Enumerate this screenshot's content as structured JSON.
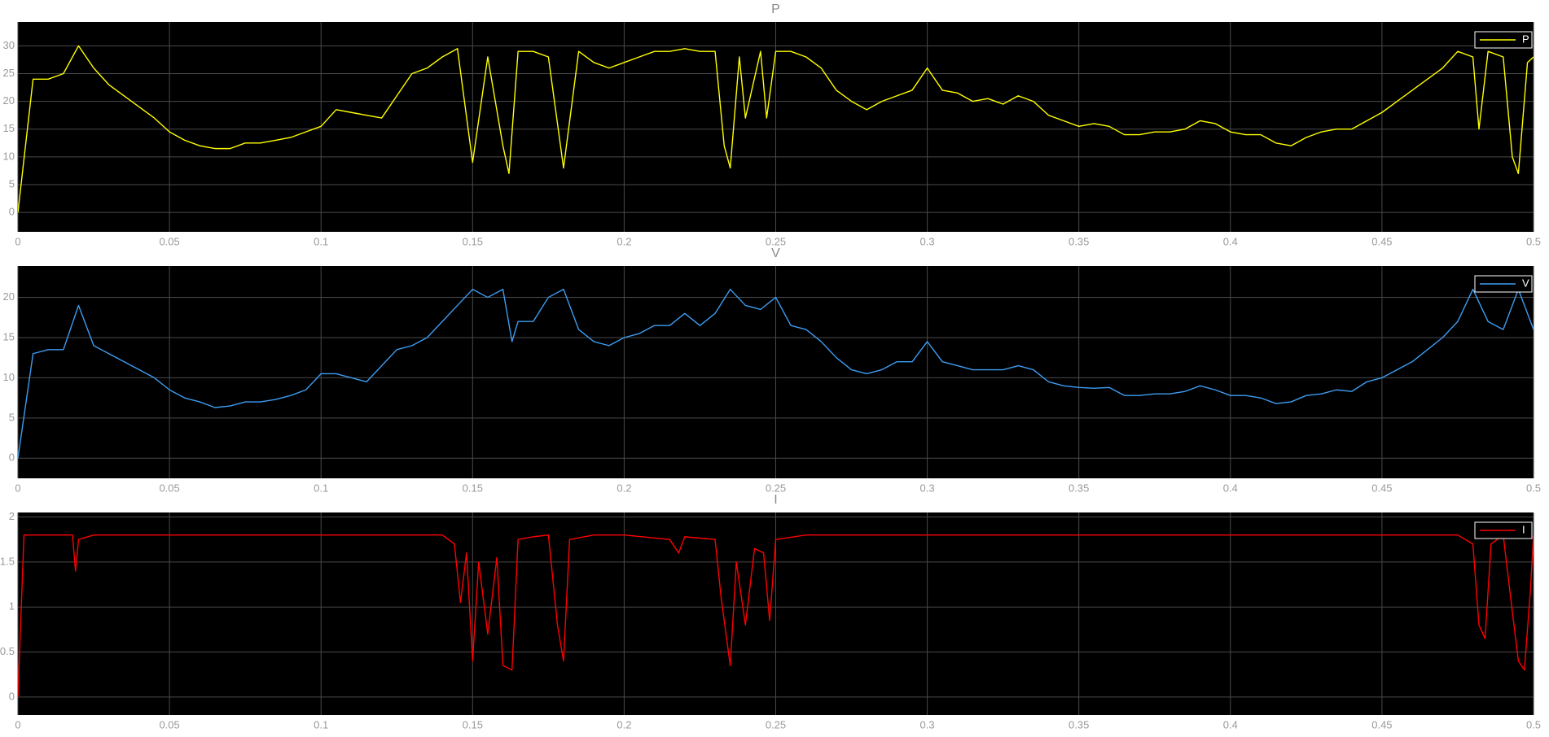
{
  "chart_data": [
    {
      "type": "line",
      "title": "P",
      "xlim": [
        0,
        0.5
      ],
      "xticks": [
        0,
        0.05,
        0.1,
        0.15,
        0.2,
        0.25,
        0.3,
        0.35,
        0.4,
        0.45,
        0.5
      ],
      "ylim": [
        -3.5,
        34.3
      ],
      "yticks": [
        0,
        5,
        10,
        15,
        20,
        25,
        30
      ],
      "grid": true,
      "legend": "upper right",
      "x": [
        0,
        0.005,
        0.01,
        0.015,
        0.02,
        0.025,
        0.03,
        0.035,
        0.04,
        0.045,
        0.05,
        0.055,
        0.06,
        0.065,
        0.07,
        0.075,
        0.08,
        0.085,
        0.09,
        0.095,
        0.1,
        0.105,
        0.11,
        0.115,
        0.12,
        0.125,
        0.13,
        0.135,
        0.14,
        0.145,
        0.15,
        0.155,
        0.16,
        0.162,
        0.165,
        0.17,
        0.175,
        0.18,
        0.185,
        0.19,
        0.195,
        0.2,
        0.205,
        0.21,
        0.215,
        0.22,
        0.225,
        0.23,
        0.233,
        0.235,
        0.238,
        0.24,
        0.245,
        0.247,
        0.25,
        0.255,
        0.26,
        0.265,
        0.27,
        0.275,
        0.28,
        0.285,
        0.29,
        0.295,
        0.3,
        0.305,
        0.31,
        0.315,
        0.32,
        0.325,
        0.33,
        0.335,
        0.34,
        0.345,
        0.35,
        0.355,
        0.36,
        0.365,
        0.37,
        0.375,
        0.38,
        0.385,
        0.39,
        0.395,
        0.4,
        0.405,
        0.41,
        0.415,
        0.42,
        0.425,
        0.43,
        0.435,
        0.44,
        0.445,
        0.45,
        0.455,
        0.46,
        0.465,
        0.47,
        0.475,
        0.48,
        0.482,
        0.485,
        0.49,
        0.493,
        0.495,
        0.498,
        0.5
      ],
      "series": [
        {
          "name": "P",
          "color": "#ffff00",
          "values": [
            0,
            24,
            24,
            25,
            30,
            26,
            23,
            21,
            19,
            17,
            14.5,
            13,
            12,
            11.5,
            11.5,
            12.5,
            12.5,
            13,
            13.5,
            14.5,
            15.5,
            18.5,
            18,
            17.5,
            17,
            21,
            25,
            26,
            28,
            29.5,
            9,
            28,
            12,
            7,
            29,
            29,
            28,
            8,
            29,
            27,
            26,
            27,
            28,
            29,
            29,
            29.5,
            29,
            29,
            12,
            8,
            28,
            17,
            29,
            17,
            29,
            29,
            28,
            26,
            22,
            20,
            18.5,
            20,
            21,
            22,
            26,
            22,
            21.5,
            20,
            20.5,
            19.5,
            21,
            20,
            17.5,
            16.5,
            15.5,
            16,
            15.5,
            14,
            14,
            14.5,
            14.5,
            15,
            16.5,
            16,
            14.5,
            14,
            14,
            12.5,
            12,
            13.5,
            14.5,
            15,
            15,
            16.5,
            18,
            20,
            22,
            24,
            26,
            29,
            28,
            15,
            29,
            28,
            10,
            7,
            27,
            28
          ]
        }
      ]
    },
    {
      "type": "line",
      "title": "V",
      "xlim": [
        0,
        0.5
      ],
      "xticks": [
        0,
        0.05,
        0.1,
        0.15,
        0.2,
        0.25,
        0.3,
        0.35,
        0.4,
        0.45,
        0.5
      ],
      "ylim": [
        -2.5,
        23.9
      ],
      "yticks": [
        0,
        5,
        10,
        15,
        20
      ],
      "grid": true,
      "legend": "upper right",
      "x": [
        0,
        0.005,
        0.01,
        0.015,
        0.02,
        0.025,
        0.03,
        0.035,
        0.04,
        0.045,
        0.05,
        0.055,
        0.06,
        0.065,
        0.07,
        0.075,
        0.08,
        0.085,
        0.09,
        0.095,
        0.1,
        0.105,
        0.11,
        0.115,
        0.12,
        0.125,
        0.13,
        0.135,
        0.14,
        0.145,
        0.15,
        0.155,
        0.16,
        0.163,
        0.165,
        0.17,
        0.175,
        0.18,
        0.185,
        0.19,
        0.195,
        0.2,
        0.205,
        0.21,
        0.215,
        0.22,
        0.225,
        0.23,
        0.235,
        0.24,
        0.245,
        0.25,
        0.255,
        0.26,
        0.265,
        0.27,
        0.275,
        0.28,
        0.285,
        0.29,
        0.295,
        0.3,
        0.305,
        0.31,
        0.315,
        0.32,
        0.325,
        0.33,
        0.335,
        0.34,
        0.345,
        0.35,
        0.355,
        0.36,
        0.365,
        0.37,
        0.375,
        0.38,
        0.385,
        0.39,
        0.395,
        0.4,
        0.405,
        0.41,
        0.415,
        0.42,
        0.425,
        0.43,
        0.435,
        0.44,
        0.445,
        0.45,
        0.455,
        0.46,
        0.465,
        0.47,
        0.475,
        0.48,
        0.485,
        0.49,
        0.495,
        0.5
      ],
      "series": [
        {
          "name": "V",
          "color": "#3d9df2",
          "values": [
            0,
            13,
            13.5,
            13.5,
            19,
            14,
            13,
            12,
            11,
            10,
            8.5,
            7.5,
            7,
            6.3,
            6.5,
            7,
            7,
            7.3,
            7.8,
            8.5,
            10.5,
            10.5,
            10,
            9.5,
            11.5,
            13.5,
            14,
            15,
            17,
            19,
            21,
            20,
            21,
            14.5,
            17,
            17,
            20,
            21,
            16,
            14.5,
            14,
            15,
            15.5,
            16.5,
            16.5,
            18,
            16.5,
            18,
            21,
            19,
            18.5,
            20,
            16.5,
            16,
            14.5,
            12.5,
            11,
            10.5,
            11,
            12,
            12,
            14.5,
            12,
            11.5,
            11,
            11,
            11,
            11.5,
            11,
            9.5,
            9,
            8.8,
            8.7,
            8.8,
            7.8,
            7.8,
            8,
            8,
            8.3,
            9,
            8.5,
            7.8,
            7.8,
            7.5,
            6.8,
            7,
            7.8,
            8,
            8.5,
            8.3,
            9.5,
            10,
            11,
            12,
            13.5,
            15,
            17,
            21,
            17,
            16,
            21,
            16
          ]
        }
      ]
    },
    {
      "type": "line",
      "title": "I",
      "xlim": [
        0,
        0.5
      ],
      "xticks": [
        0,
        0.05,
        0.1,
        0.15,
        0.2,
        0.25,
        0.3,
        0.35,
        0.4,
        0.45,
        0.5
      ],
      "ylim": [
        -0.2,
        2.05
      ],
      "yticks": [
        0,
        0.5,
        1,
        1.5,
        2
      ],
      "grid": true,
      "legend": "upper right",
      "x": [
        0,
        0.002,
        0.018,
        0.019,
        0.02,
        0.025,
        0.05,
        0.1,
        0.14,
        0.144,
        0.146,
        0.148,
        0.15,
        0.152,
        0.155,
        0.158,
        0.16,
        0.163,
        0.165,
        0.17,
        0.175,
        0.178,
        0.18,
        0.182,
        0.19,
        0.2,
        0.215,
        0.218,
        0.22,
        0.23,
        0.232,
        0.235,
        0.237,
        0.24,
        0.243,
        0.246,
        0.248,
        0.25,
        0.26,
        0.3,
        0.35,
        0.4,
        0.45,
        0.475,
        0.48,
        0.482,
        0.484,
        0.486,
        0.49,
        0.493,
        0.495,
        0.497,
        0.499,
        0.5
      ],
      "series": [
        {
          "name": "I",
          "color": "#ff0000",
          "values": [
            0,
            1.8,
            1.8,
            1.4,
            1.75,
            1.8,
            1.8,
            1.8,
            1.8,
            1.7,
            1.05,
            1.6,
            0.4,
            1.5,
            0.7,
            1.55,
            0.35,
            0.3,
            1.75,
            1.78,
            1.8,
            0.8,
            0.4,
            1.75,
            1.8,
            1.8,
            1.75,
            1.6,
            1.78,
            1.75,
            1.1,
            0.35,
            1.5,
            0.8,
            1.65,
            1.6,
            0.85,
            1.75,
            1.8,
            1.8,
            1.8,
            1.8,
            1.8,
            1.8,
            1.7,
            0.8,
            0.65,
            1.7,
            1.8,
            0.95,
            0.4,
            0.3,
            1.2,
            1.8
          ]
        }
      ]
    }
  ]
}
